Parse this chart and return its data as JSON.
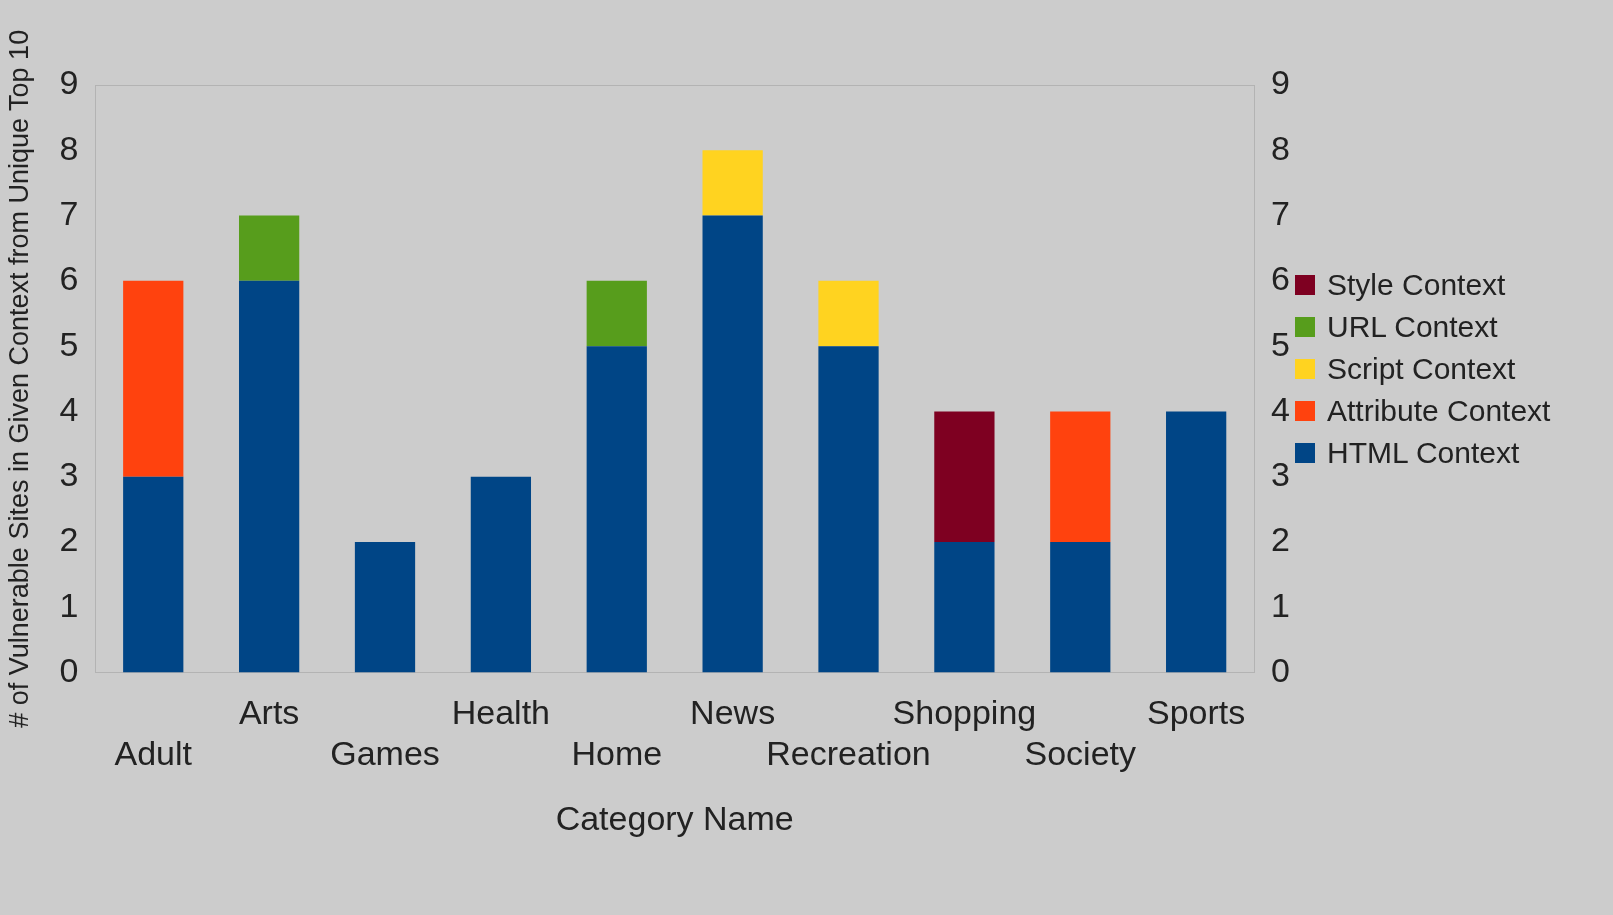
{
  "chart_data": {
    "type": "bar",
    "stacked": true,
    "xlabel": "Category Name",
    "ylabel": "# of Vulnerable Sites in Given Context from Unique Top 10",
    "categories": [
      "Adult",
      "Arts",
      "Games",
      "Health",
      "Home",
      "News",
      "Recreation",
      "Shopping",
      "Society",
      "Sports"
    ],
    "series": [
      {
        "name": "HTML Context",
        "color": "#004586",
        "values": [
          3,
          6,
          2,
          3,
          5,
          7,
          5,
          2,
          2,
          4
        ]
      },
      {
        "name": "Attribute Context",
        "color": "#ff420e",
        "values": [
          3,
          0,
          0,
          0,
          0,
          0,
          0,
          0,
          2,
          0
        ]
      },
      {
        "name": "Script Context",
        "color": "#ffd320",
        "values": [
          0,
          0,
          0,
          0,
          0,
          1,
          1,
          0,
          0,
          0
        ]
      },
      {
        "name": "URL Context",
        "color": "#579d1c",
        "values": [
          0,
          1,
          0,
          0,
          1,
          0,
          0,
          0,
          0,
          0
        ]
      },
      {
        "name": "Style Context",
        "color": "#7e0021",
        "values": [
          0,
          0,
          0,
          0,
          0,
          0,
          0,
          2,
          0,
          0
        ]
      }
    ],
    "ylim": [
      0,
      9
    ],
    "yticks": [
      0,
      1,
      2,
      3,
      4,
      5,
      6,
      7,
      8,
      9
    ],
    "y2lim": [
      0,
      9
    ],
    "y2ticks": [
      0,
      1,
      2,
      3,
      4,
      5,
      6,
      7,
      8,
      9
    ],
    "grid": false,
    "legend": "right"
  }
}
